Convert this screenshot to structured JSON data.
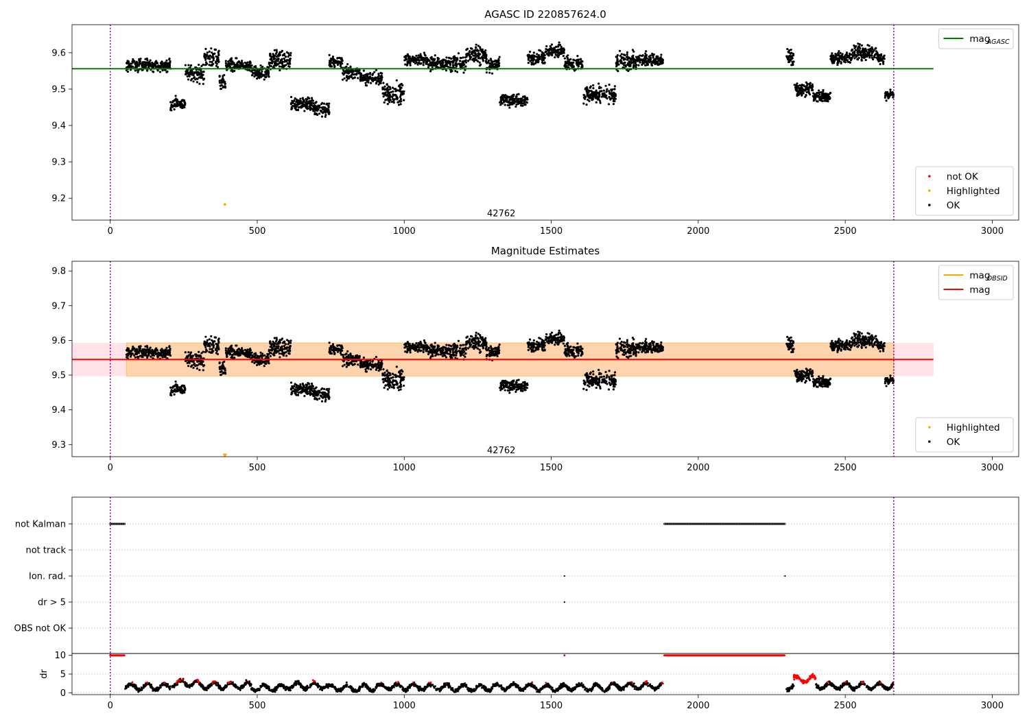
{
  "chart_data": [
    {
      "type": "scatter",
      "title": "AGASC ID 220857624.0",
      "xlabel": "",
      "ylabel": "",
      "xlim": [
        -130,
        3090
      ],
      "ylim": [
        9.14,
        9.677
      ],
      "xticks": [
        "0",
        "500",
        "1000",
        "1500",
        "2000",
        "2500",
        "3000"
      ],
      "xtick_values": [
        0,
        500,
        1000,
        1500,
        2000,
        2500,
        3000
      ],
      "yticks": [
        "9.2",
        "9.3",
        "9.4",
        "9.5",
        "9.6"
      ],
      "ytick_values": [
        9.2,
        9.3,
        9.4,
        9.5,
        9.6
      ],
      "annotation": "42762",
      "annotation_pos": [
        1330,
        9.158
      ],
      "vlines": [
        0,
        2665
      ],
      "hline": {
        "y": 9.556,
        "x_range": [
          -130,
          2800
        ],
        "color": "#008000"
      },
      "highlighted_points": [
        [
          390,
          9.183
        ]
      ],
      "ok_segments": [
        [
          55,
          205,
          9.565,
          0.008
        ],
        [
          205,
          255,
          9.46,
          0.008
        ],
        [
          255,
          320,
          9.545,
          0.012
        ],
        [
          320,
          370,
          9.585,
          0.012
        ],
        [
          370,
          392,
          9.515,
          0.01
        ],
        [
          392,
          480,
          9.565,
          0.008
        ],
        [
          480,
          540,
          9.545,
          0.008
        ],
        [
          540,
          615,
          9.58,
          0.012
        ],
        [
          615,
          690,
          9.46,
          0.01
        ],
        [
          690,
          745,
          9.445,
          0.01
        ],
        [
          745,
          790,
          9.575,
          0.008
        ],
        [
          790,
          850,
          9.545,
          0.008
        ],
        [
          850,
          925,
          9.53,
          0.008
        ],
        [
          925,
          1000,
          9.49,
          0.014
        ],
        [
          1000,
          1080,
          9.58,
          0.008
        ],
        [
          1080,
          1130,
          9.57,
          0.008
        ],
        [
          1130,
          1210,
          9.57,
          0.01
        ],
        [
          1210,
          1280,
          9.595,
          0.012
        ],
        [
          1280,
          1325,
          9.565,
          0.01
        ],
        [
          1325,
          1420,
          9.47,
          0.008
        ],
        [
          1420,
          1480,
          9.585,
          0.008
        ],
        [
          1480,
          1545,
          9.605,
          0.008
        ],
        [
          1545,
          1610,
          9.57,
          0.01
        ],
        [
          1610,
          1720,
          9.485,
          0.012
        ],
        [
          1720,
          1790,
          9.575,
          0.012
        ],
        [
          1790,
          1880,
          9.58,
          0.008
        ],
        [
          2300,
          2325,
          9.59,
          0.01
        ],
        [
          2325,
          2390,
          9.5,
          0.008
        ],
        [
          2390,
          2450,
          9.48,
          0.008
        ],
        [
          2450,
          2520,
          9.585,
          0.008
        ],
        [
          2520,
          2610,
          9.6,
          0.01
        ],
        [
          2610,
          2635,
          9.585,
          0.008
        ],
        [
          2635,
          2665,
          9.485,
          0.006
        ]
      ],
      "legends": [
        {
          "position": "upper-right",
          "entries": [
            {
              "kind": "line",
              "color": "#008000",
              "label": "mag",
              "subscript": "AGASC"
            }
          ]
        },
        {
          "position": "lower-right",
          "entries": [
            {
              "kind": "dot",
              "color": "#ff0000",
              "label": "not OK"
            },
            {
              "kind": "dot",
              "color": "#ffa500",
              "label": "Highlighted"
            },
            {
              "kind": "dot",
              "color": "#000000",
              "label": "OK"
            }
          ]
        }
      ]
    },
    {
      "type": "scatter",
      "title": "Magnitude Estimates",
      "xlabel": "",
      "ylabel": "",
      "xlim": [
        -130,
        3090
      ],
      "ylim": [
        9.265,
        9.828
      ],
      "xticks": [
        "0",
        "500",
        "1000",
        "1500",
        "2000",
        "2500",
        "3000"
      ],
      "xtick_values": [
        0,
        500,
        1000,
        1500,
        2000,
        2500,
        3000
      ],
      "yticks": [
        "9.3",
        "9.4",
        "9.5",
        "9.6",
        "9.7",
        "9.8"
      ],
      "ytick_values": [
        9.3,
        9.4,
        9.5,
        9.6,
        9.7,
        9.8
      ],
      "annotation": "42762",
      "annotation_pos": [
        1330,
        9.283
      ],
      "vlines": [
        0,
        2665
      ],
      "band": {
        "y_range": [
          9.497,
          9.593
        ],
        "x_range": [
          -130,
          2800
        ],
        "color": "#ffc0cb"
      },
      "obsid_band": {
        "y_range": [
          9.497,
          9.593
        ],
        "x_range": [
          55,
          2665
        ],
        "color": "#ffa500"
      },
      "hline": {
        "y": 9.545,
        "x_range": [
          -130,
          2800
        ],
        "color": "#ff0000"
      },
      "highlighted_points": [
        [
          390,
          9.27
        ]
      ],
      "legends": [
        {
          "position": "upper-right",
          "entries": [
            {
              "kind": "line",
              "color": "#ffa500",
              "label": "mag",
              "subscript": "OBSID"
            },
            {
              "kind": "line",
              "color": "#ff0000",
              "label": "mag"
            }
          ]
        },
        {
          "position": "lower-right",
          "entries": [
            {
              "kind": "dot",
              "color": "#ffa500",
              "label": "Highlighted"
            },
            {
              "kind": "dot",
              "color": "#000000",
              "label": "OK"
            }
          ]
        }
      ]
    },
    {
      "type": "scatter",
      "title": "",
      "xlabel": "",
      "ylabel": "",
      "xlim": [
        -130,
        3090
      ],
      "categories": [
        "not Kalman",
        "not track",
        "Ion. rad.",
        "dr > 5",
        "OBS not OK"
      ],
      "flags": [
        {
          "category": "not Kalman",
          "ranges": [
            [
              0,
              50
            ],
            [
              1885,
              2295
            ]
          ]
        },
        {
          "category": "not track",
          "ranges": []
        },
        {
          "category": "Ion. rad.",
          "points": [
            1545,
            2295
          ]
        },
        {
          "category": "dr > 5",
          "points": [
            1545
          ]
        },
        {
          "category": "OBS not OK",
          "ranges": []
        }
      ],
      "vlines": [
        0,
        2665
      ]
    },
    {
      "type": "scatter",
      "title": "",
      "xlabel": "",
      "ylabel": "dr",
      "xlim": [
        -130,
        3090
      ],
      "ylim": [
        -0.5,
        10.5
      ],
      "xticks": [
        "0",
        "500",
        "1000",
        "1500",
        "2000",
        "2500",
        "3000"
      ],
      "xtick_values": [
        0,
        500,
        1000,
        1500,
        2000,
        2500,
        3000
      ],
      "yticks": [
        "0",
        "5",
        "10"
      ],
      "ytick_values": [
        0,
        5,
        10
      ],
      "clipped_red_ranges": [
        [
          0,
          50
        ],
        [
          1885,
          2295
        ]
      ],
      "clipped_red_points": [
        1545
      ],
      "dr_segments": [
        [
          50,
          205,
          1.6
        ],
        [
          205,
          300,
          2.5
        ],
        [
          300,
          480,
          1.9
        ],
        [
          480,
          600,
          1.3
        ],
        [
          600,
          740,
          1.9
        ],
        [
          740,
          900,
          1.3
        ],
        [
          900,
          1000,
          1.6
        ],
        [
          1000,
          1150,
          1.5
        ],
        [
          1150,
          1300,
          1.3
        ],
        [
          1300,
          1450,
          1.6
        ],
        [
          1450,
          1545,
          1.3
        ],
        [
          1545,
          1700,
          1.4
        ],
        [
          1700,
          1880,
          1.8
        ],
        [
          2300,
          2325,
          1.5
        ],
        [
          2325,
          2400,
          3.6
        ],
        [
          2400,
          2665,
          1.8
        ]
      ],
      "vlines": [
        0,
        2665
      ]
    }
  ]
}
